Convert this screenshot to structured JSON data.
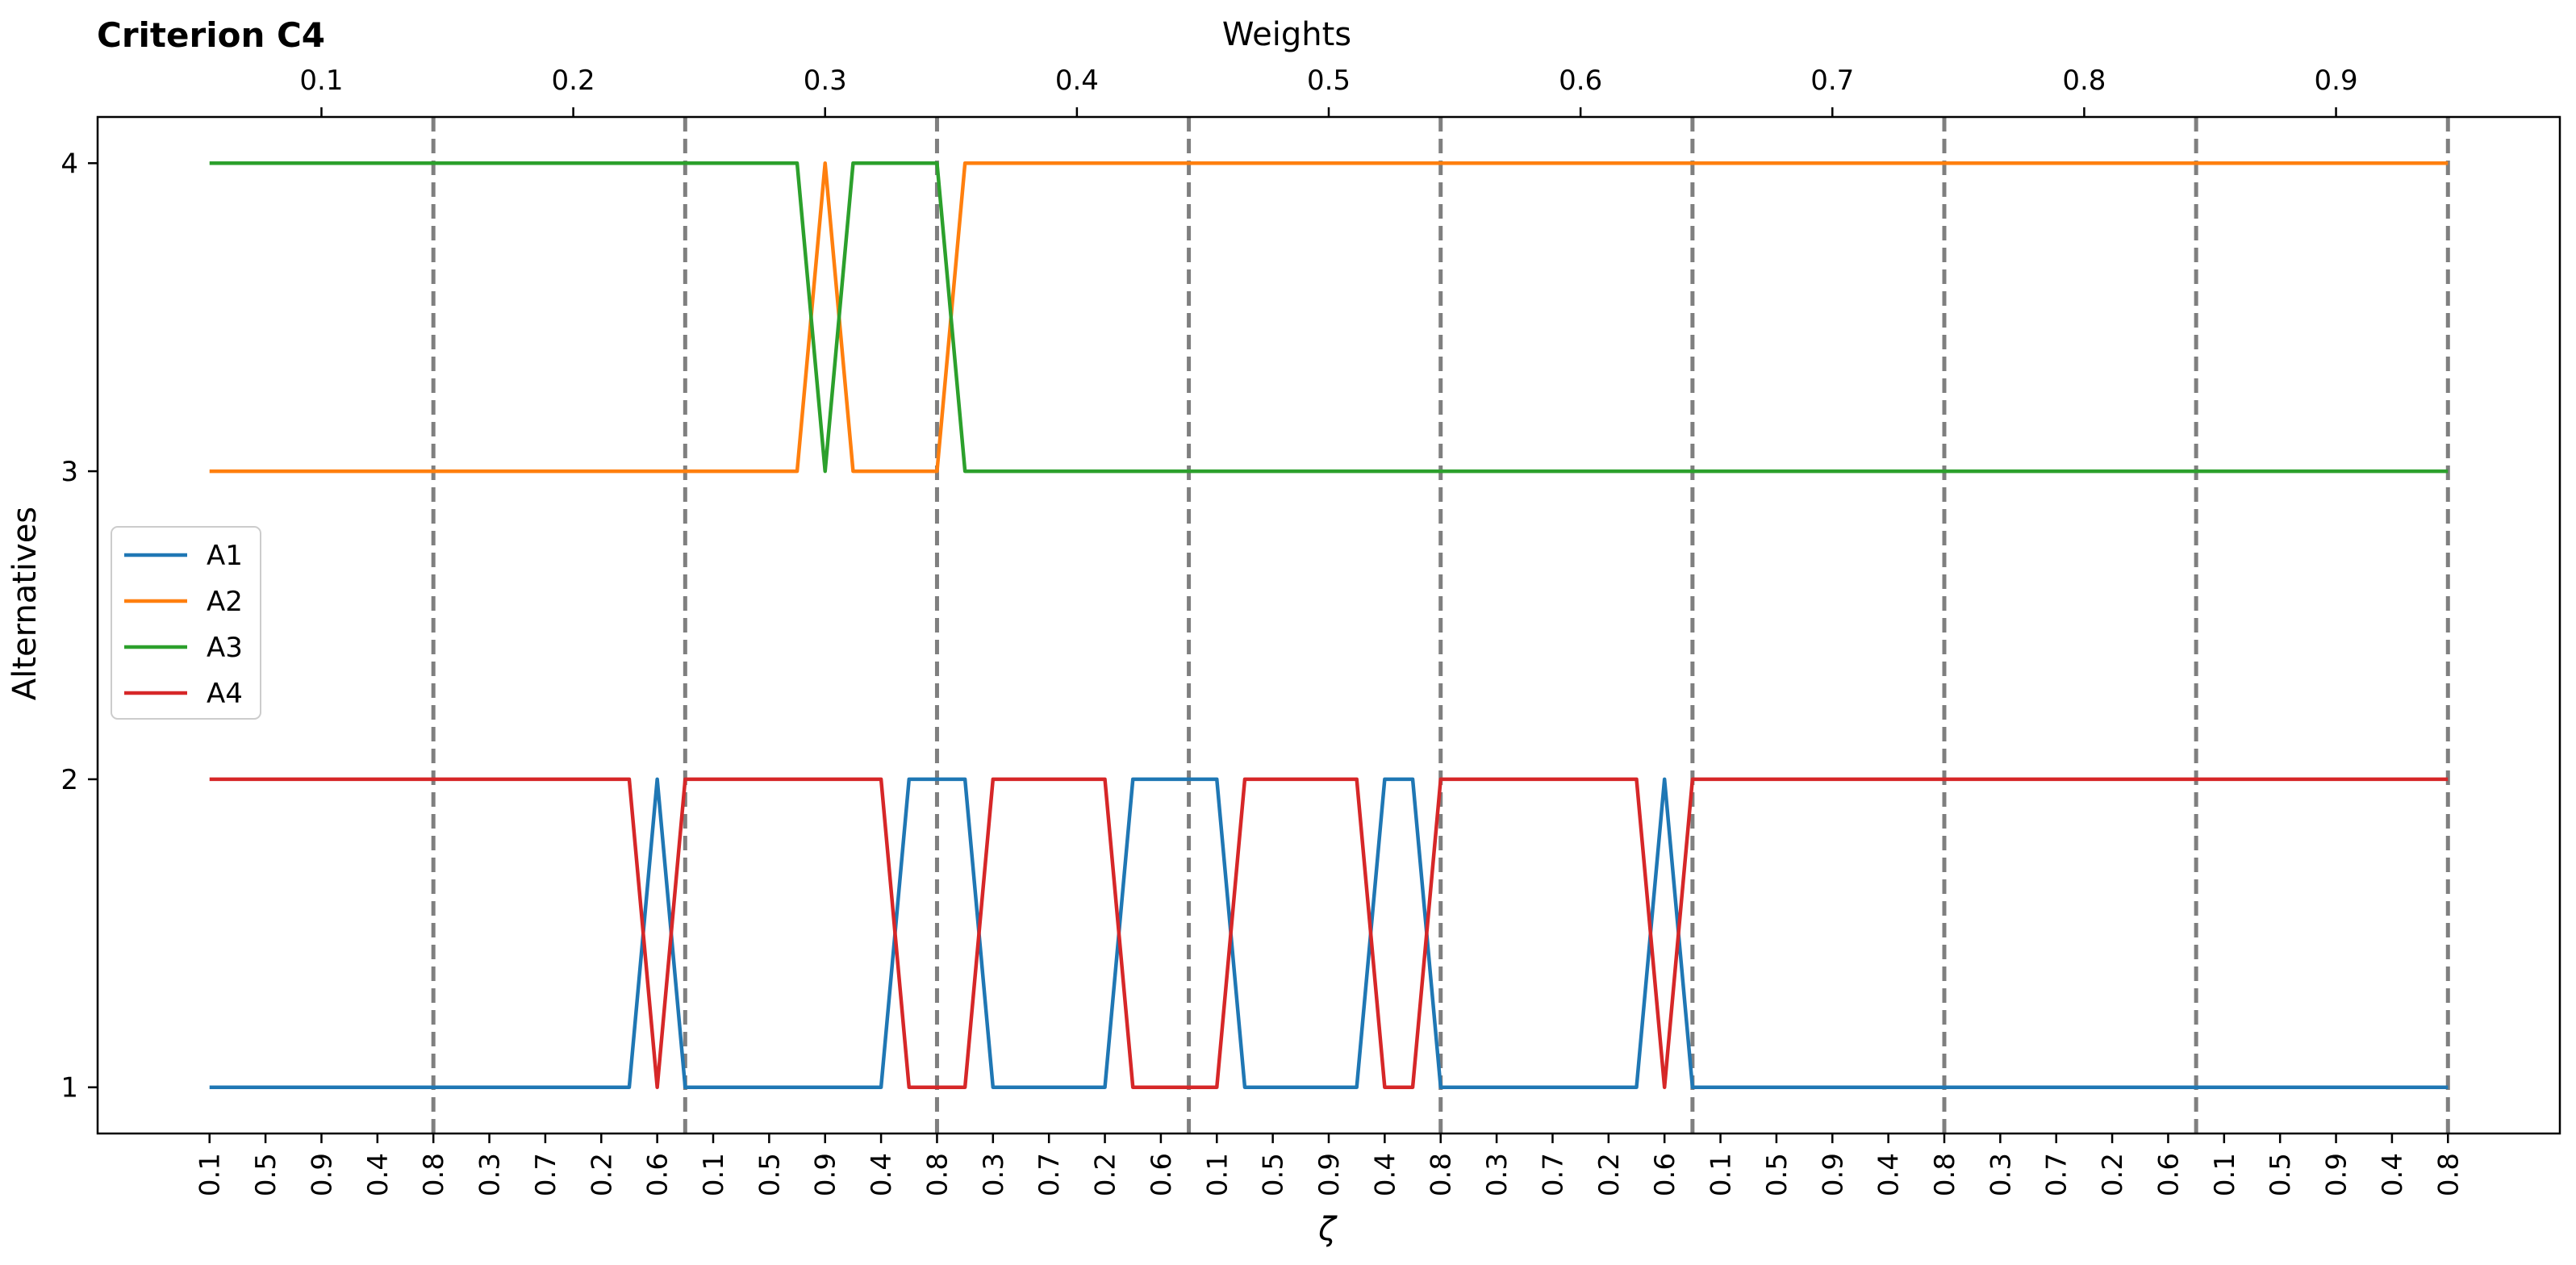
{
  "chart_data": {
    "type": "line",
    "title": "Criterion C4",
    "top_axis_label": "Weights",
    "xlabel": "ζ",
    "ylabel": "Alternatives",
    "ylim": [
      0.85,
      4.15
    ],
    "yticks": [
      1,
      2,
      3,
      4
    ],
    "weight_ticks": [
      "0.1",
      "0.2",
      "0.3",
      "0.4",
      "0.5",
      "0.6",
      "0.7",
      "0.8",
      "0.9"
    ],
    "weight_tick_positions": [
      4,
      13,
      22,
      31,
      40,
      49,
      58,
      67,
      76
    ],
    "x": [
      0,
      1,
      2,
      3,
      4,
      5,
      6,
      7,
      8,
      9,
      10,
      11,
      12,
      13,
      14,
      15,
      16,
      17,
      18,
      19,
      20,
      21,
      22,
      23,
      24,
      25,
      26,
      27,
      28,
      29,
      30,
      31,
      32,
      33,
      34,
      35,
      36,
      37,
      38,
      39,
      40,
      41,
      42,
      43,
      44,
      45,
      46,
      47,
      48,
      49,
      50,
      51,
      52,
      53,
      54,
      55,
      56,
      57,
      58,
      59,
      60,
      61,
      62,
      63,
      64,
      65,
      66,
      67,
      68,
      69,
      70,
      71,
      72,
      73,
      74,
      75,
      76,
      77,
      78,
      79,
      80
    ],
    "x_tick_labels": [
      "0.1",
      "0.3",
      "0.5",
      "0.7",
      "0.9",
      "0.2",
      "0.4",
      "0.6",
      "0.8",
      "0.1",
      "0.3",
      "0.5",
      "0.7",
      "0.9",
      "0.2",
      "0.4",
      "0.6",
      "0.8",
      "0.1",
      "0.3",
      "0.5",
      "0.7",
      "0.9",
      "0.2",
      "0.4",
      "0.6",
      "0.8",
      "0.1",
      "0.3",
      "0.5",
      "0.7",
      "0.9",
      "0.2",
      "0.4",
      "0.6",
      "0.8",
      "0.1",
      "0.3",
      "0.5",
      "0.7",
      "0.9",
      "0.2",
      "0.4",
      "0.6",
      "0.8",
      "0.1",
      "0.3",
      "0.5",
      "0.7",
      "0.9",
      "0.2",
      "0.4",
      "0.6",
      "0.8",
      "0.1",
      "0.3",
      "0.5",
      "0.7",
      "0.9",
      "0.2",
      "0.4",
      "0.6",
      "0.8",
      "0.1",
      "0.3",
      "0.5",
      "0.7",
      "0.9",
      "0.2",
      "0.4",
      "0.6",
      "0.8",
      "0.1",
      "0.3",
      "0.5",
      "0.7",
      "0.9",
      "0.2",
      "0.4",
      "0.6",
      "0.8"
    ],
    "x_tick_step": 2,
    "vlines": [
      8,
      17,
      26,
      35,
      44,
      53,
      62,
      71,
      80
    ],
    "xlim": [
      -4,
      84
    ],
    "legend_position": "center-left",
    "series": [
      {
        "name": "A1",
        "color": "#1f77b4",
        "values": [
          1,
          1,
          1,
          1,
          1,
          1,
          1,
          1,
          1,
          1,
          1,
          1,
          1,
          1,
          1,
          1,
          2,
          1,
          1,
          1,
          1,
          1,
          1,
          1,
          1,
          2,
          2,
          2,
          1,
          1,
          1,
          1,
          1,
          2,
          2,
          2,
          2,
          1,
          1,
          1,
          1,
          1,
          2,
          2,
          1,
          1,
          1,
          1,
          1,
          1,
          1,
          1,
          2,
          1,
          1,
          1,
          1,
          1,
          1,
          1,
          1,
          1,
          1,
          1,
          1,
          1,
          1,
          1,
          1,
          1,
          1,
          1,
          1,
          1,
          1,
          1,
          1,
          1,
          1,
          1,
          1
        ]
      },
      {
        "name": "A2",
        "color": "#ff7f0e",
        "values": [
          3,
          3,
          3,
          3,
          3,
          3,
          3,
          3,
          3,
          3,
          3,
          3,
          3,
          3,
          3,
          3,
          3,
          3,
          3,
          3,
          3,
          3,
          4,
          3,
          3,
          3,
          3,
          4,
          4,
          4,
          4,
          4,
          4,
          4,
          4,
          4,
          4,
          4,
          4,
          4,
          4,
          4,
          4,
          4,
          4,
          4,
          4,
          4,
          4,
          4,
          4,
          4,
          4,
          4,
          4,
          4,
          4,
          4,
          4,
          4,
          4,
          4,
          4,
          4,
          4,
          4,
          4,
          4,
          4,
          4,
          4,
          4,
          4,
          4,
          4,
          4,
          4,
          4,
          4,
          4,
          4
        ]
      },
      {
        "name": "A3",
        "color": "#2ca02c",
        "values": [
          4,
          4,
          4,
          4,
          4,
          4,
          4,
          4,
          4,
          4,
          4,
          4,
          4,
          4,
          4,
          4,
          4,
          4,
          4,
          4,
          4,
          4,
          3,
          4,
          4,
          4,
          4,
          3,
          3,
          3,
          3,
          3,
          3,
          3,
          3,
          3,
          3,
          3,
          3,
          3,
          3,
          3,
          3,
          3,
          3,
          3,
          3,
          3,
          3,
          3,
          3,
          3,
          3,
          3,
          3,
          3,
          3,
          3,
          3,
          3,
          3,
          3,
          3,
          3,
          3,
          3,
          3,
          3,
          3,
          3,
          3,
          3,
          3,
          3,
          3,
          3,
          3,
          3,
          3,
          3,
          3
        ]
      },
      {
        "name": "A4",
        "color": "#d62728",
        "values": [
          2,
          2,
          2,
          2,
          2,
          2,
          2,
          2,
          2,
          2,
          2,
          2,
          2,
          2,
          2,
          2,
          1,
          2,
          2,
          2,
          2,
          2,
          2,
          2,
          2,
          1,
          1,
          1,
          2,
          2,
          2,
          2,
          2,
          1,
          1,
          1,
          1,
          2,
          2,
          2,
          2,
          2,
          1,
          1,
          2,
          2,
          2,
          2,
          2,
          2,
          2,
          2,
          1,
          2,
          2,
          2,
          2,
          2,
          2,
          2,
          2,
          2,
          2,
          2,
          2,
          2,
          2,
          2,
          2,
          2,
          2,
          2,
          2,
          2,
          2,
          2,
          2,
          2,
          2,
          2,
          2
        ]
      }
    ]
  },
  "colors": {
    "vline": "#7f7f7f",
    "axis": "#000000",
    "legend_border": "#cccccc"
  }
}
